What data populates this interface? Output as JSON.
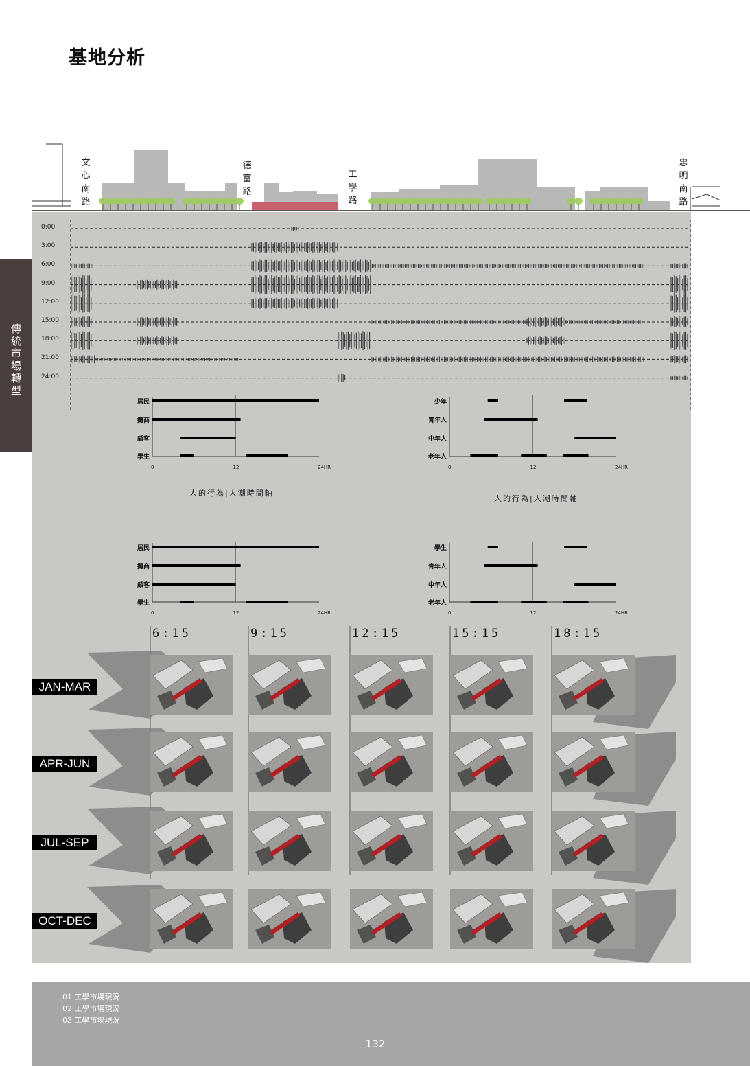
{
  "page": {
    "title": "基地分析",
    "side_tab": "傳統市場轉型"
  },
  "streets": [
    "文心南路",
    "德富路",
    "工學路",
    "忠明南路"
  ],
  "timeline": {
    "labels": [
      "0:00",
      "3:00",
      "6:00",
      "9:00",
      "12:00",
      "15:00",
      "18:00",
      "21:00",
      "24:00"
    ]
  },
  "behavior_charts": [
    {
      "categories": [
        "居民",
        "攤商",
        "顧客",
        "學生"
      ],
      "x_ticks": [
        "0",
        "12",
        "24HR"
      ],
      "caption": "人的行為|人潮時間軸"
    },
    {
      "categories": [
        "少年",
        "青年人",
        "中年人",
        "老年人"
      ],
      "x_ticks": [
        "0",
        "12",
        "24HR"
      ],
      "caption": "人的行為|人潮時間軸"
    },
    {
      "categories": [
        "居民",
        "攤商",
        "顧客",
        "學生"
      ],
      "x_ticks": [
        "0",
        "12",
        "24HR"
      ],
      "caption": ""
    },
    {
      "categories": [
        "學生",
        "青年人",
        "中年人",
        "老年人"
      ],
      "x_ticks": [
        "0",
        "12",
        "24HR"
      ],
      "caption": ""
    }
  ],
  "shadow_study": {
    "times": [
      "6:15",
      "9:15",
      "12:15",
      "15:15",
      "18:15"
    ],
    "seasons": [
      "JAN-MAR",
      "APR-JUN",
      "JUL-SEP",
      "OCT-DEC"
    ]
  },
  "footer": {
    "lines": [
      "01  工學市場現況",
      "02  工學市場現況",
      "03  工學市場現況"
    ],
    "page_number": "132"
  },
  "colors": {
    "market_red": "#c8616e",
    "tree_green": "#9ccc5a",
    "building_gray": "#b8b8b6",
    "side_tab": "#4a3f3c",
    "footer": "#a6a6a4"
  }
}
